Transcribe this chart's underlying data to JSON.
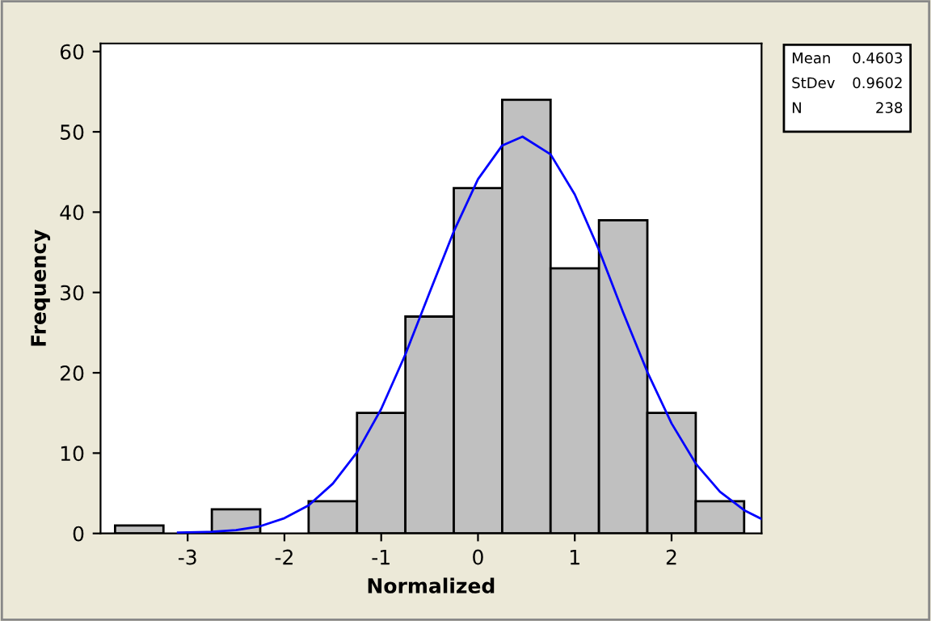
{
  "chart_data": {
    "type": "histogram",
    "xlabel": "Normalized",
    "ylabel": "Frequency",
    "xlim": [
      -3.9,
      2.93
    ],
    "ylim": [
      0,
      61
    ],
    "xticks": [
      -3,
      -2,
      -1,
      0,
      1,
      2
    ],
    "yticks": [
      0,
      10,
      20,
      30,
      40,
      50,
      60
    ],
    "grid": false,
    "legend": false,
    "annotations": [
      "Mean",
      "0.4603",
      "StDev",
      "0.9602",
      "N",
      "238"
    ],
    "series": [
      {
        "color": "#c0c0c0",
        "bins": [
          -3.75,
          -3.25,
          -2.75,
          -2.25,
          -1.75,
          -1.25,
          -0.75,
          -0.25,
          0.25,
          0.75,
          1.25,
          1.75,
          2.25,
          2.75
        ],
        "values": [
          1,
          0,
          3,
          0,
          4,
          15,
          27,
          43,
          54,
          33,
          39,
          15,
          4
        ]
      },
      {
        "type": "line",
        "color": "#0000ff",
        "x": [
          -3.1,
          -2.75,
          -2.5,
          -2.25,
          -2,
          -1.75,
          -1.5,
          -1.25,
          -1,
          -0.75,
          -0.5,
          -0.25,
          0,
          0.25,
          0.46,
          0.75,
          1,
          1.25,
          1.5,
          1.75,
          2,
          2.25,
          2.5,
          2.75,
          2.93
        ],
        "values": [
          0.1,
          0.2,
          0.4,
          0.9,
          1.9,
          3.5,
          6.2,
          10.1,
          15.5,
          22.3,
          30.0,
          37.6,
          44.1,
          48.3,
          49.4,
          47.2,
          42.2,
          35.3,
          27.5,
          20.1,
          13.7,
          8.7,
          5.2,
          2.9,
          1.8
        ]
      }
    ]
  }
}
